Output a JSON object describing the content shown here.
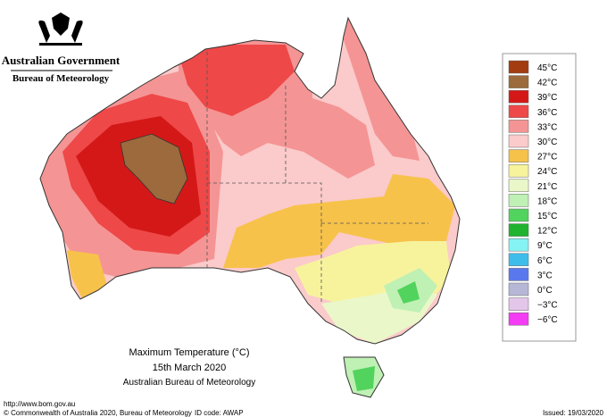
{
  "header": {
    "government": "Australian Government",
    "agency": "Bureau of Meteorology"
  },
  "map": {
    "title": "Maximum Temperature (°C)",
    "date": "15th March 2020",
    "source": "Australian Bureau of Meteorology"
  },
  "legend": [
    {
      "label": "45°C",
      "color": "#a33c10"
    },
    {
      "label": "42°C",
      "color": "#9c6a3c"
    },
    {
      "label": "39°C",
      "color": "#d41818"
    },
    {
      "label": "36°C",
      "color": "#ee4848"
    },
    {
      "label": "33°C",
      "color": "#f59494"
    },
    {
      "label": "30°C",
      "color": "#fbcaca"
    },
    {
      "label": "27°C",
      "color": "#f7c24a"
    },
    {
      "label": "24°C",
      "color": "#f7f39c"
    },
    {
      "label": "21°C",
      "color": "#eaf7c9"
    },
    {
      "label": "18°C",
      "color": "#bff0b4"
    },
    {
      "label": "15°C",
      "color": "#52d35e"
    },
    {
      "label": "12°C",
      "color": "#1fb330"
    },
    {
      "label": "9°C",
      "color": "#85f3f3"
    },
    {
      "label": "6°C",
      "color": "#3fbdea"
    },
    {
      "label": "3°C",
      "color": "#5a78ee"
    },
    {
      "label": "0°C",
      "color": "#b6b6d6"
    },
    {
      "label": "−3°C",
      "color": "#e3c6ea"
    },
    {
      "label": "−6°C",
      "color": "#f43cf4"
    }
  ],
  "footer": {
    "url": "http://www.bom.gov.au",
    "copyright": "© Commonwealth of Australia 2020, Bureau of Meteorology",
    "id_code": "ID code: AWAP",
    "issued": "Issued: 19/03/2020"
  }
}
